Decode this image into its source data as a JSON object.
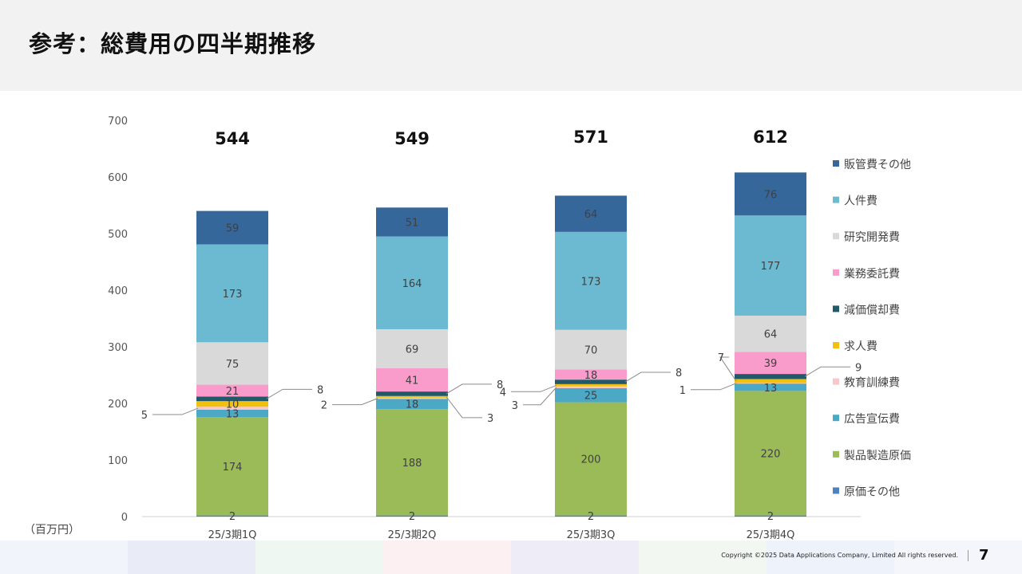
{
  "page": {
    "title": "参考：総費用の四半期推移",
    "unit_label": "（百万円）",
    "copyright": "Copyright ©2025  Data Applications Company, Limited All rights reserved.",
    "page_number": "7"
  },
  "colors": {
    "販管費その他": "#35679a",
    "人件費": "#6cbad2",
    "研究開発費": "#d9d9d9",
    "業務委託費": "#f99bcb",
    "減価償却費": "#215968",
    "求人費": "#f2c10f",
    "教育訓練費": "#f9c6cc",
    "広告宣伝費": "#4ba9c6",
    "製品製造原価": "#9bbb59",
    "原価その他": "#4f81bd"
  },
  "footer_colors": [
    "#f1f4fb",
    "#e9ebf6",
    "#eff7f3",
    "#fdf0f3",
    "#eeedf7",
    "#f2f8f1",
    "#eef3fb",
    "#f4f6fb"
  ],
  "chart_data": {
    "type": "bar",
    "stacked": true,
    "categories": [
      "25/3期1Q",
      "25/3期2Q",
      "25/3期3Q",
      "25/3期4Q"
    ],
    "totals": [
      544,
      549,
      571,
      612
    ],
    "ylim": [
      0,
      700
    ],
    "yticks": [
      0,
      100,
      200,
      300,
      400,
      500,
      600,
      700
    ],
    "grid": false,
    "legend_position": "right",
    "series": [
      {
        "name": "原価その他",
        "values": [
          2,
          2,
          2,
          2
        ]
      },
      {
        "name": "製品製造原価",
        "values": [
          174,
          188,
          200,
          220
        ]
      },
      {
        "name": "広告宣伝費",
        "values": [
          13,
          18,
          25,
          13
        ]
      },
      {
        "name": "教育訓練費",
        "values": [
          5,
          2,
          3,
          1
        ]
      },
      {
        "name": "求人費",
        "values": [
          10,
          3,
          4,
          7
        ]
      },
      {
        "name": "減価償却費",
        "values": [
          8,
          8,
          8,
          9
        ]
      },
      {
        "name": "業務委託費",
        "values": [
          21,
          41,
          18,
          39
        ]
      },
      {
        "name": "研究開発費",
        "values": [
          75,
          69,
          70,
          64
        ]
      },
      {
        "name": "人件費",
        "values": [
          173,
          164,
          173,
          177
        ]
      },
      {
        "name": "販管費その他",
        "values": [
          59,
          51,
          64,
          76
        ]
      }
    ],
    "legend_order": [
      "販管費その他",
      "人件費",
      "研究開発費",
      "業務委託費",
      "減価償却費",
      "求人費",
      "教育訓練費",
      "広告宣伝費",
      "製品製造原価",
      "原価その他"
    ],
    "callouts": [
      {
        "category": 0,
        "series": "教育訓練費",
        "text": "5",
        "side": "left"
      },
      {
        "category": 0,
        "series": "減価償却費",
        "text": "8",
        "side": "right"
      },
      {
        "category": 1,
        "series": "教育訓練費",
        "text": "2",
        "side": "left"
      },
      {
        "category": 1,
        "series": "減価償却費",
        "text": "8",
        "side": "right"
      },
      {
        "category": 1,
        "series": "求人費",
        "text": "3",
        "side": "right-low"
      },
      {
        "category": 2,
        "series": "求人費",
        "text": "4",
        "side": "left"
      },
      {
        "category": 2,
        "series": "教育訓練費",
        "text": "3",
        "side": "left-low"
      },
      {
        "category": 2,
        "series": "減価償却費",
        "text": "8",
        "side": "right"
      },
      {
        "category": 3,
        "series": "求人費",
        "text": "7",
        "side": "left-high"
      },
      {
        "category": 3,
        "series": "教育訓練費",
        "text": "1",
        "side": "left"
      },
      {
        "category": 3,
        "series": "減価償却費",
        "text": "9",
        "side": "right"
      }
    ]
  }
}
